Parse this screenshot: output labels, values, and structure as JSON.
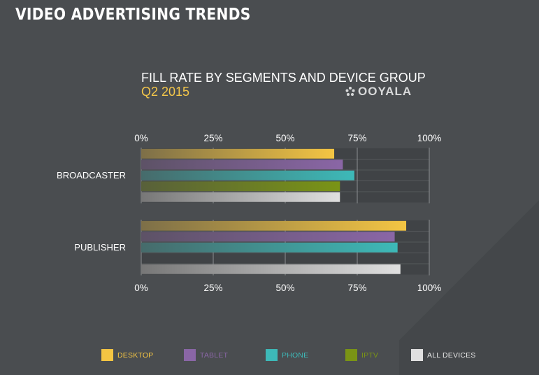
{
  "page_title": "VIDEO ADVERTISING TRENDS",
  "brand": {
    "name": "OOYALA",
    "icon": "ooyala-logo-icon"
  },
  "colors": {
    "desktop": "#f4c543",
    "tablet": "#8a66a6",
    "phone": "#3db9b8",
    "iptv": "#7a9415",
    "all_devices": "#e0e0e0",
    "subtitle": "#f3c64a",
    "background": "#4a4d50"
  },
  "chart_data": {
    "type": "bar",
    "orientation": "horizontal",
    "title": "FILL RATE BY SEGMENTS AND DEVICE GROUP",
    "subtitle": "Q2 2015",
    "categories": [
      "BROADCASTER",
      "PUBLISHER"
    ],
    "xlim": [
      0,
      100
    ],
    "x_ticks": [
      "0%",
      "25%",
      "50%",
      "75%",
      "100%"
    ],
    "grid": true,
    "legend_position": "bottom",
    "series": [
      {
        "name": "DESKTOP",
        "key": "desktop",
        "values": [
          67,
          92
        ]
      },
      {
        "name": "TABLET",
        "key": "tablet",
        "values": [
          70,
          88
        ]
      },
      {
        "name": "PHONE",
        "key": "phone",
        "values": [
          74,
          89
        ]
      },
      {
        "name": "IPTV",
        "key": "iptv",
        "values": [
          69,
          null
        ]
      },
      {
        "name": "ALL DEVICES",
        "key": "all_devices",
        "values": [
          69,
          90
        ]
      }
    ]
  }
}
